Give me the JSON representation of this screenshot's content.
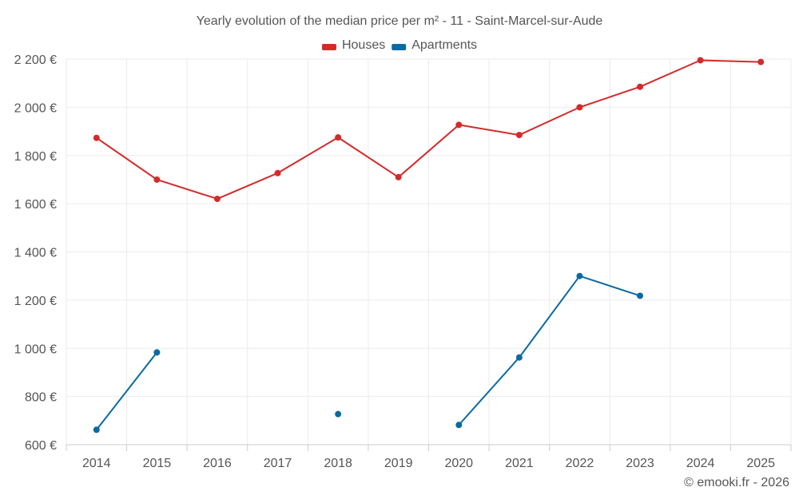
{
  "chart_data": {
    "type": "line",
    "title": "Yearly evolution of the median price per m² - 11 - Saint-Marcel-sur-Aude",
    "categories": [
      "2014",
      "2015",
      "2016",
      "2017",
      "2018",
      "2019",
      "2020",
      "2021",
      "2022",
      "2023",
      "2024",
      "2025"
    ],
    "ylim": [
      600,
      2200
    ],
    "yticks": [
      600,
      800,
      1000,
      1200,
      1400,
      1600,
      1800,
      2000,
      2200
    ],
    "ytick_labels": [
      "600 €",
      "800 €",
      "1 000 €",
      "1 200 €",
      "1 400 €",
      "1 600 €",
      "1 800 €",
      "2 000 €",
      "2 200 €"
    ],
    "grid": true,
    "legend_position": "top-center",
    "series": [
      {
        "name": "Houses",
        "color": "#d42a2a",
        "values": [
          1873,
          1700,
          1620,
          1727,
          1875,
          1710,
          1927,
          1885,
          2000,
          2085,
          2195,
          2188
        ]
      },
      {
        "name": "Apartments",
        "color": "#0a6aa1",
        "values": [
          662,
          983,
          null,
          null,
          727,
          null,
          682,
          962,
          1300,
          1218,
          null,
          null
        ]
      }
    ]
  },
  "credit": "© emooki.fr - 2026"
}
